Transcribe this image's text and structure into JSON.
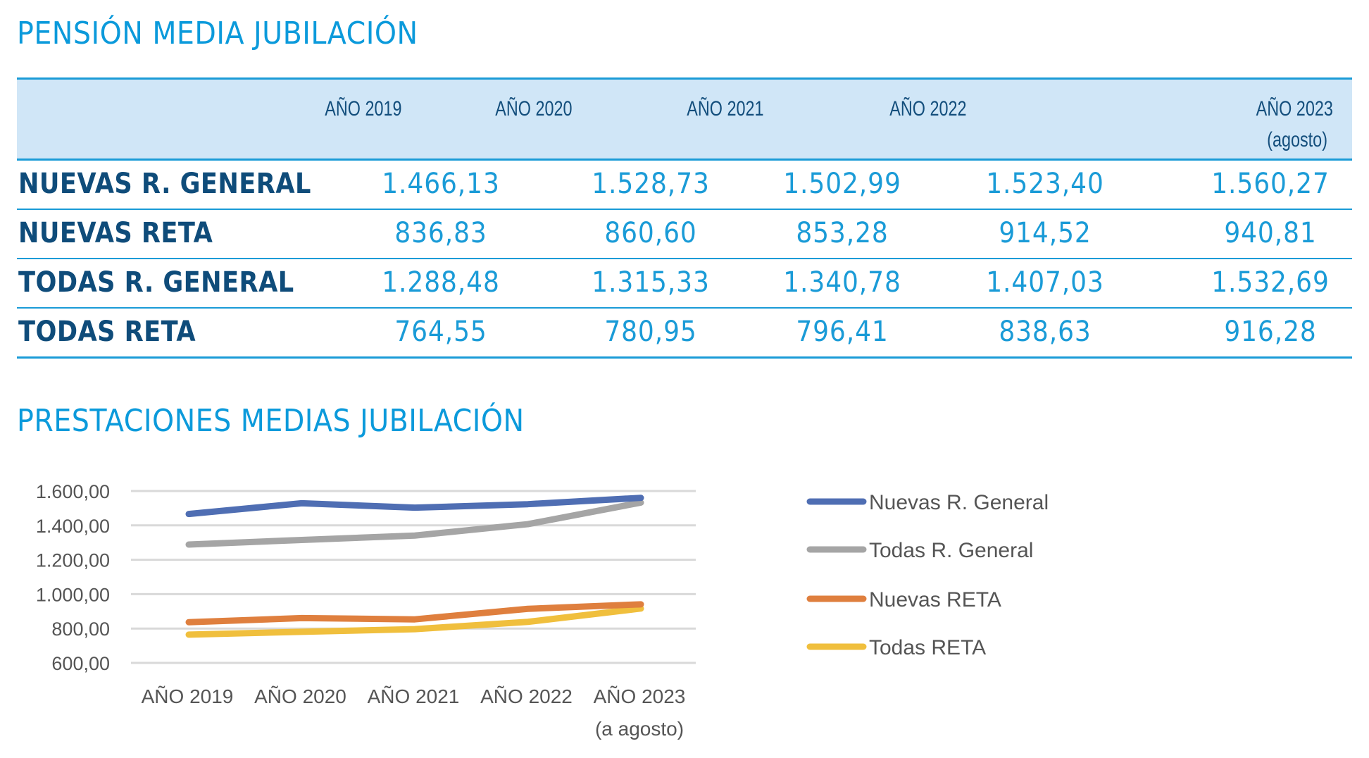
{
  "table": {
    "title": "PENSIÓN MEDIA JUBILACIÓN",
    "columns": [
      "AÑO 2019",
      "AÑO 2020",
      "AÑO 2021",
      "AÑO 2022",
      "AÑO 2023"
    ],
    "last_column_note": "(agosto)",
    "rows": [
      {
        "label": "NUEVAS R. GENERAL",
        "values": [
          "1.466,13",
          "1.528,73",
          "1.502,99",
          "1.523,40",
          "1.560,27"
        ]
      },
      {
        "label": "NUEVAS RETA",
        "values": [
          "836,83",
          "860,60",
          "853,28",
          "914,52",
          "940,81"
        ]
      },
      {
        "label": "TODAS R. GENERAL",
        "values": [
          "1.288,48",
          "1.315,33",
          "1.340,78",
          "1.407,03",
          "1.532,69"
        ]
      },
      {
        "label": "TODAS RETA",
        "values": [
          "764,55",
          "780,95",
          "796,41",
          "838,63",
          "916,28"
        ]
      }
    ]
  },
  "chart_data": {
    "type": "line",
    "title": "PRESTACIONES MEDIAS JUBILACIÓN",
    "categories": [
      "AÑO 2019",
      "AÑO 2020",
      "AÑO 2021",
      "AÑO 2022",
      "AÑO 2023"
    ],
    "last_category_note": "(a agosto)",
    "xlabel": "",
    "ylabel": "",
    "ylim": [
      600,
      1600
    ],
    "yticks": [
      600,
      800,
      1000,
      1200,
      1400,
      1600
    ],
    "ytick_labels": [
      "600,00",
      "800,00",
      "1.000,00",
      "1.200,00",
      "1.400,00",
      "1.600,00"
    ],
    "grid": true,
    "legend_position": "right",
    "series": [
      {
        "name": "Nuevas R. General",
        "color": "#4F6EB3",
        "values": [
          1466.13,
          1528.73,
          1502.99,
          1523.4,
          1560.27
        ]
      },
      {
        "name": "Todas R. General",
        "color": "#A5A5A5",
        "values": [
          1288.48,
          1315.33,
          1340.78,
          1407.03,
          1532.69
        ]
      },
      {
        "name": "Nuevas RETA",
        "color": "#DF7F3E",
        "values": [
          836.83,
          860.6,
          853.28,
          914.52,
          940.81
        ]
      },
      {
        "name": "Todas RETA",
        "color": "#F0BF3D",
        "values": [
          764.55,
          780.95,
          796.41,
          838.63,
          916.28
        ]
      }
    ]
  },
  "colors": {
    "title": "#0B9ADB",
    "header_bg": "#D0E6F7",
    "rule": "#1A9BD7",
    "row_label": "#0F4C7A",
    "value": "#1A9BD7"
  }
}
